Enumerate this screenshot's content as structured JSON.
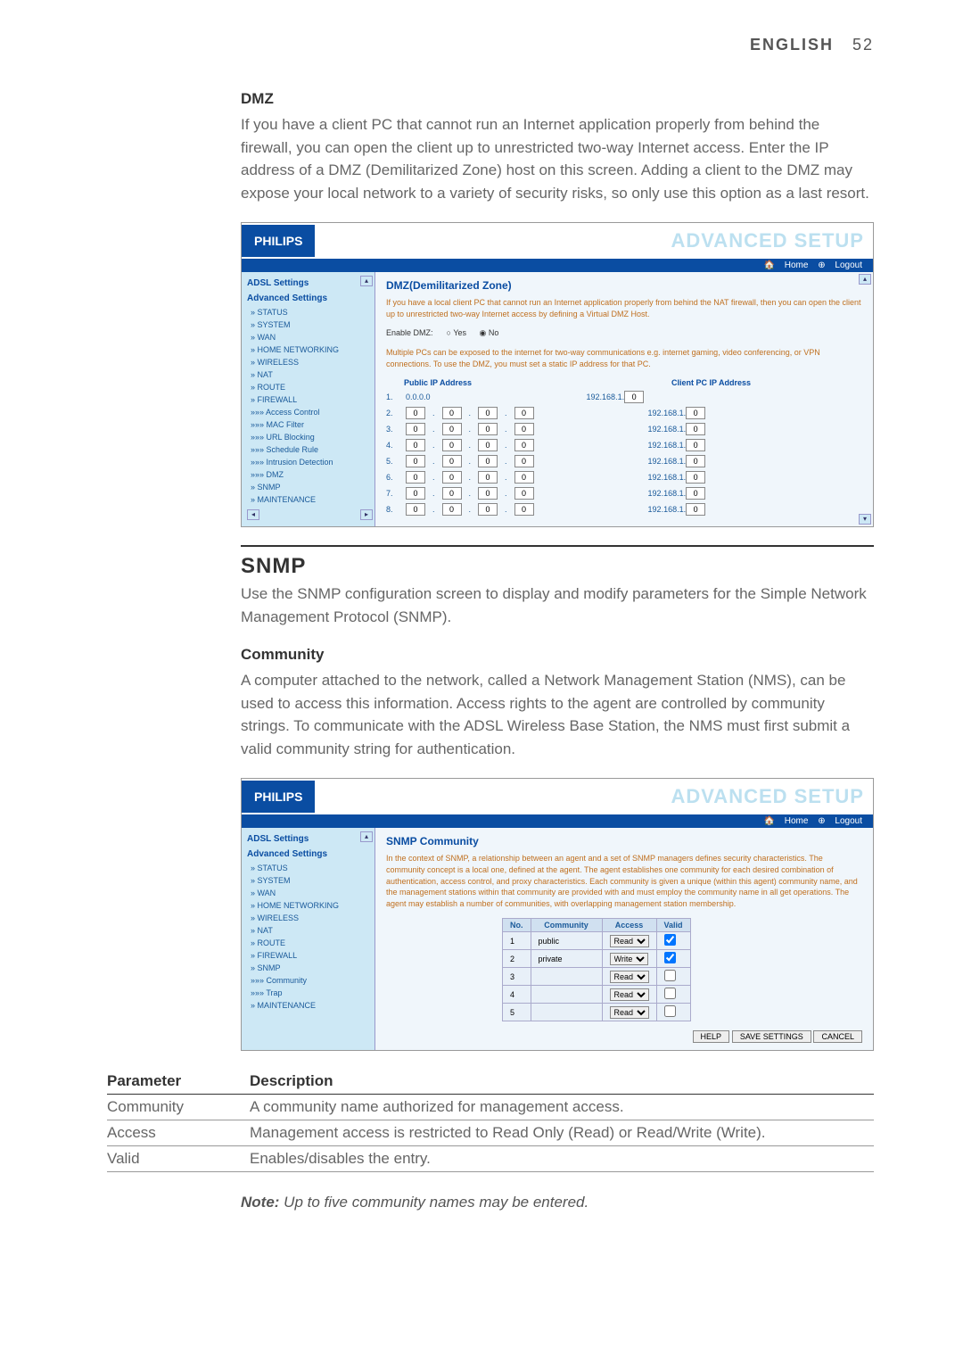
{
  "header": {
    "label": "ENGLISH",
    "page": "52"
  },
  "dmz": {
    "title": "DMZ",
    "body": "If you have a client PC that cannot run an Internet application properly from behind the firewall, you can open the client up to unrestricted two-way Internet access. Enter the IP address of a DMZ (Demilitarized Zone) host on this screen. Adding a client to the DMZ may expose your local network to a variety of security risks, so only use this option as a last resort."
  },
  "snmp_section": {
    "title": "SNMP",
    "intro": "Use the SNMP configuration screen to display and modify parameters for the Simple Network Management Protocol (SNMP).",
    "community_title": "Community",
    "community_body": "A computer attached to the network, called a Network Management Station (NMS), can be used to access this information. Access rights to the agent are controlled by community strings. To communicate with the ADSL Wireless Base Station, the NMS must first submit a valid community string for authentication."
  },
  "screenshot1": {
    "logo": "PHILIPS",
    "banner": "ADVANCED SETUP",
    "topbar": {
      "home": "Home",
      "logout": "Logout"
    },
    "sidebar": {
      "h1": "ADSL Settings",
      "h2": "Advanced Settings",
      "items": [
        "» STATUS",
        "» SYSTEM",
        "» WAN",
        "» HOME NETWORKING",
        "» WIRELESS",
        "» NAT",
        "» ROUTE",
        "» FIREWALL",
        "»»» Access Control",
        "»»» MAC Filter",
        "»»» URL Blocking",
        "»»» Schedule Rule",
        "»»» Intrusion Detection",
        "»»» DMZ",
        "» SNMP",
        "» MAINTENANCE"
      ]
    },
    "panel_title": "DMZ(Demilitarized Zone)",
    "desc1": "If you have a local client PC that cannot run an Internet application properly from behind the NAT firewall, then you can open the client up to unrestricted two-way Internet access by defining a Virtual DMZ Host.",
    "enable_label": "Enable DMZ:",
    "radio_yes": "Yes",
    "radio_no": "No",
    "desc2": "Multiple PCs can be exposed to the internet for two-way communications e.g. internet gaming, video conferencing, or VPN connections.  To use the DMZ, you must set a static IP address for that PC.",
    "th_public": "Public IP Address",
    "th_client": "Client PC IP Address",
    "row1_public": "0.0.0.0",
    "client_prefix": "192.168.1.",
    "rows": [
      1,
      2,
      3,
      4,
      5,
      6,
      7,
      8
    ],
    "octet_default": "0"
  },
  "screenshot2": {
    "logo": "PHILIPS",
    "banner": "ADVANCED SETUP",
    "topbar": {
      "home": "Home",
      "logout": "Logout"
    },
    "sidebar": {
      "h1": "ADSL Settings",
      "h2": "Advanced Settings",
      "items": [
        "» STATUS",
        "» SYSTEM",
        "» WAN",
        "» HOME NETWORKING",
        "» WIRELESS",
        "» NAT",
        "» ROUTE",
        "» FIREWALL",
        "» SNMP",
        "»»» Community",
        "»»» Trap",
        "» MAINTENANCE"
      ]
    },
    "panel_title": "SNMP Community",
    "desc": "In the context of SNMP, a relationship between an agent and a set of SNMP managers defines security characteristics. The community concept is a local one, defined at the agent. The agent establishes one community for each desired combination of authentication, access control, and proxy characteristics. Each community is given a unique (within this agent) community name, and the management stations within that community are provided with and must employ the community name in all get operations. The agent may establish a number of communities, with overlapping management station membership.",
    "table": {
      "headers": [
        "No.",
        "Community",
        "Access",
        "Valid"
      ],
      "rows": [
        {
          "no": "1",
          "community": "public",
          "access": "Read",
          "valid": true
        },
        {
          "no": "2",
          "community": "private",
          "access": "Write",
          "valid": true
        },
        {
          "no": "3",
          "community": "",
          "access": "Read",
          "valid": false
        },
        {
          "no": "4",
          "community": "",
          "access": "Read",
          "valid": false
        },
        {
          "no": "5",
          "community": "",
          "access": "Read",
          "valid": false
        }
      ]
    },
    "buttons": {
      "help": "HELP",
      "save": "SAVE SETTINGS",
      "cancel": "CANCEL"
    }
  },
  "param_table": {
    "headers": {
      "param": "Parameter",
      "desc": "Description"
    },
    "rows": [
      {
        "p": "Community",
        "d": "A community name authorized for management access."
      },
      {
        "p": "Access",
        "d": "Management access is restricted to Read Only (Read) or Read/Write (Write)."
      },
      {
        "p": "Valid",
        "d": "Enables/disables the entry."
      }
    ]
  },
  "note": {
    "label": "Note:",
    "text": " Up to five community names may be entered."
  }
}
